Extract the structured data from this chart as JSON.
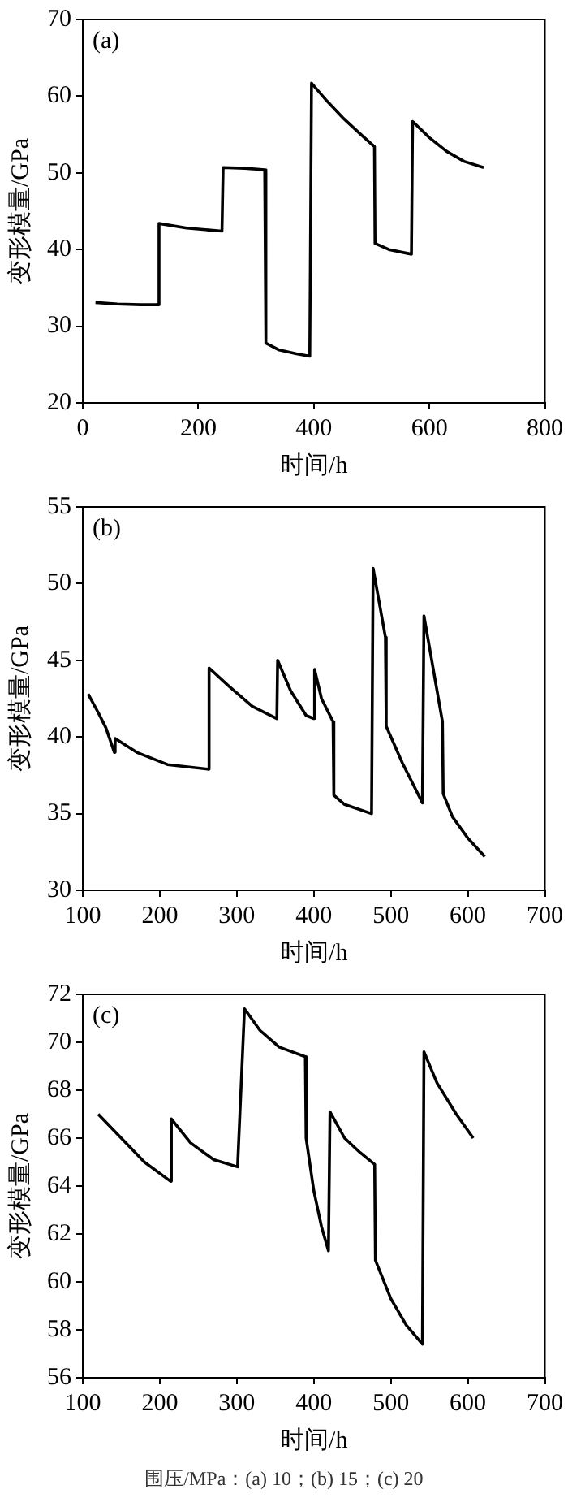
{
  "chart_data": [
    {
      "type": "line",
      "title": "(a)",
      "xlabel": "时间/h",
      "ylabel": "变形模量/GPa",
      "xlim": [
        0,
        800
      ],
      "xticks": [
        0,
        200,
        400,
        600,
        800
      ],
      "ylim": [
        20,
        70
      ],
      "yticks": [
        20,
        30,
        40,
        50,
        60,
        70
      ],
      "grid": false,
      "legend": false,
      "marker": "none",
      "line_style": "solid",
      "series": [
        {
          "color": "#000000",
          "x": [
            22,
            60,
            100,
            130,
            132,
            180,
            241,
            243,
            280,
            315,
            317,
            340,
            370,
            393,
            396,
            420,
            450,
            480,
            505,
            506,
            530,
            569,
            571,
            600,
            630,
            660,
            694
          ],
          "values": [
            33.1,
            32.9,
            32.8,
            32.8,
            43.4,
            42.8,
            42.4,
            50.7,
            50.6,
            50.4,
            27.8,
            26.9,
            26.4,
            26.1,
            61.7,
            59.6,
            57.2,
            55.1,
            53.4,
            40.8,
            40.0,
            39.4,
            56.7,
            54.6,
            52.8,
            51.5,
            50.7
          ]
        }
      ]
    },
    {
      "type": "line",
      "title": "(b)",
      "xlabel": "时间/h",
      "ylabel": "变形模量/GPa",
      "xlim": [
        100,
        700
      ],
      "xticks": [
        100,
        200,
        300,
        400,
        500,
        600,
        700
      ],
      "ylim": [
        30,
        55
      ],
      "yticks": [
        30,
        35,
        40,
        45,
        50,
        55
      ],
      "grid": false,
      "legend": false,
      "marker": "none",
      "line_style": "solid",
      "series": [
        {
          "color": "#000000",
          "x": [
            107,
            120,
            130,
            141,
            142,
            170,
            210,
            263,
            264,
            290,
            320,
            352,
            353,
            370,
            390,
            400,
            401,
            410,
            425,
            426,
            440,
            475,
            477,
            493,
            494,
            515,
            541,
            543,
            567,
            568,
            580,
            600,
            622
          ],
          "values": [
            42.8,
            41.6,
            40.6,
            39.0,
            39.9,
            39.0,
            38.2,
            37.9,
            44.5,
            43.3,
            42.0,
            41.2,
            45.0,
            43.0,
            41.4,
            41.2,
            44.4,
            42.5,
            41.0,
            36.2,
            35.6,
            35.0,
            51.0,
            46.5,
            40.7,
            38.3,
            35.7,
            47.9,
            41.0,
            36.3,
            34.8,
            33.4,
            32.2
          ]
        }
      ]
    },
    {
      "type": "line",
      "title": "(c)",
      "xlabel": "时间/h",
      "ylabel": "变形模量/GPa",
      "xlim": [
        100,
        700
      ],
      "xticks": [
        100,
        200,
        300,
        400,
        500,
        600,
        700
      ],
      "ylim": [
        56,
        72
      ],
      "yticks": [
        56,
        58,
        60,
        62,
        64,
        66,
        68,
        70,
        72
      ],
      "grid": false,
      "legend": false,
      "marker": "none",
      "line_style": "solid",
      "annotations": [
        "围压/MPa：(a) 10；(b) 15；(c) 20"
      ],
      "series": [
        {
          "color": "#000000",
          "x": [
            120,
            150,
            180,
            214,
            215,
            240,
            270,
            301,
            310,
            330,
            355,
            389,
            390,
            400,
            410,
            419,
            421,
            440,
            460,
            479,
            480,
            500,
            520,
            541,
            543,
            560,
            585,
            607
          ],
          "values": [
            67.0,
            66.0,
            65.0,
            64.2,
            66.8,
            65.8,
            65.1,
            64.8,
            71.4,
            70.5,
            69.8,
            69.4,
            66.0,
            63.8,
            62.3,
            61.3,
            67.1,
            66.0,
            65.4,
            64.9,
            60.9,
            59.3,
            58.2,
            57.4,
            69.6,
            68.3,
            67.0,
            66.0
          ]
        }
      ]
    }
  ]
}
